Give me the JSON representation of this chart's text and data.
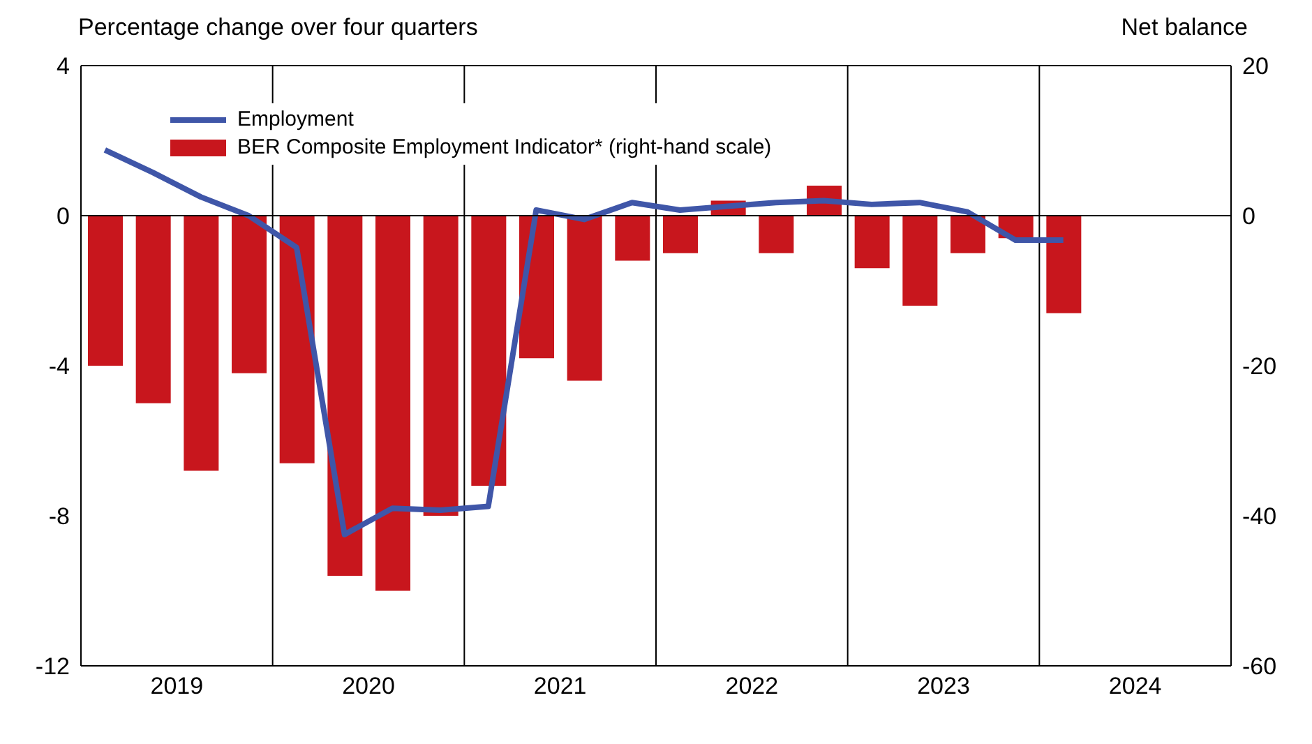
{
  "chart_data": {
    "type": "bar",
    "ylabel": "Percentage change over four quarters",
    "y2label": "Net balance",
    "x": [
      2019.125,
      2019.375,
      2019.625,
      2019.875,
      2020.125,
      2020.375,
      2020.625,
      2020.875,
      2021.125,
      2021.375,
      2021.625,
      2021.875,
      2022.125,
      2022.375,
      2022.625,
      2022.875,
      2023.125,
      2023.375,
      2023.625,
      2023.875,
      2024.125
    ],
    "series": [
      {
        "name": "Employment",
        "type": "line",
        "color": "#3f56a8",
        "values": [
          1.75,
          1.15,
          0.5,
          0,
          -0.85,
          -8.5,
          -7.8,
          -7.85,
          -7.75,
          0.15,
          -0.1,
          0.35,
          0.15,
          0.25,
          0.35,
          0.4,
          0.3,
          0.35,
          0.1,
          -0.65,
          -0.65
        ]
      },
      {
        "name": "BER Composite Employment Indicator* (right-hand scale)",
        "axis": "y2",
        "color": "#c8161d",
        "values": [
          -20,
          -25,
          -34,
          -21,
          -33,
          -48,
          -50,
          -40,
          -36,
          -19,
          -22,
          -6,
          -5,
          2,
          -5,
          4,
          -7,
          -12,
          -5,
          -3,
          -13
        ]
      }
    ],
    "xlim": [
      2019,
      2025
    ],
    "xticks": [
      {
        "value": 2019.5,
        "label": "2019"
      },
      {
        "value": 2020,
        "label": null
      },
      {
        "value": 2020.5,
        "label": "2020"
      },
      {
        "value": 2021,
        "label": null
      },
      {
        "value": 2021.5,
        "label": "2021"
      },
      {
        "value": 2022,
        "label": null
      },
      {
        "value": 2022.5,
        "label": "2022"
      },
      {
        "value": 2023,
        "label": null
      },
      {
        "value": 2023.5,
        "label": "2023"
      },
      {
        "value": 2024,
        "label": null
      },
      {
        "value": 2024.5,
        "label": "2024"
      }
    ],
    "ylim": [
      -12,
      4
    ],
    "yticks": [
      -12,
      -8,
      -4,
      0,
      4
    ],
    "y2lim": [
      -60,
      20
    ],
    "y2ticks": [
      -60,
      -40,
      -20,
      0,
      20
    ],
    "ref_lines": [
      {
        "axis": "y",
        "value": 0,
        "color": "#000000"
      }
    ],
    "grid": "x",
    "legend": "top left",
    "line_style": "solid",
    "marker": "none"
  }
}
